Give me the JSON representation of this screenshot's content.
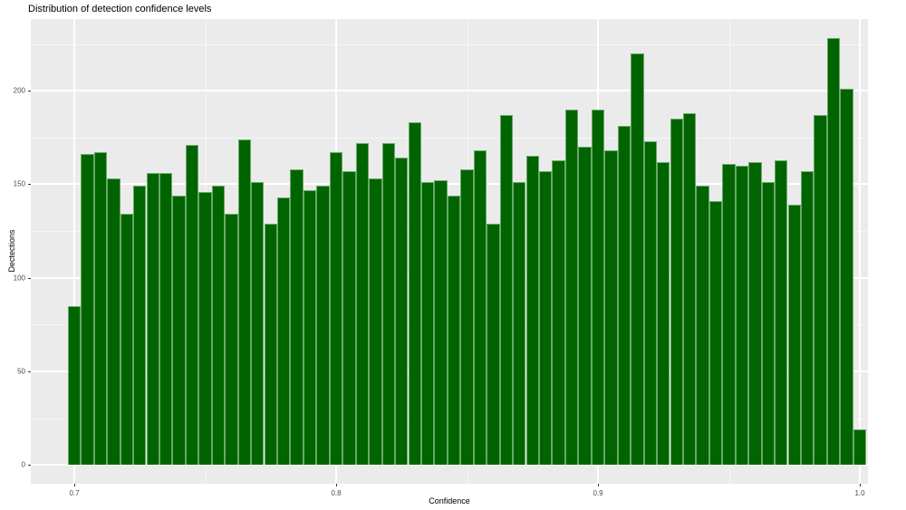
{
  "title": "Distribution of detection confidence levels",
  "chart_data": {
    "type": "bar",
    "subtype": "histogram",
    "title": "Distribution of detection confidence levels",
    "xlabel": "Confidence",
    "ylabel": "Dectections",
    "bin_width": 0.005,
    "x": [
      0.7,
      0.705,
      0.71,
      0.715,
      0.72,
      0.725,
      0.73,
      0.735,
      0.74,
      0.745,
      0.75,
      0.755,
      0.76,
      0.765,
      0.77,
      0.775,
      0.78,
      0.785,
      0.79,
      0.795,
      0.8,
      0.805,
      0.81,
      0.815,
      0.82,
      0.825,
      0.83,
      0.835,
      0.84,
      0.845,
      0.85,
      0.855,
      0.86,
      0.865,
      0.87,
      0.875,
      0.88,
      0.885,
      0.89,
      0.895,
      0.9,
      0.905,
      0.91,
      0.915,
      0.92,
      0.925,
      0.93,
      0.935,
      0.94,
      0.945,
      0.95,
      0.955,
      0.96,
      0.965,
      0.97,
      0.975,
      0.98,
      0.985,
      0.99,
      0.995,
      1.0
    ],
    "counts": [
      85,
      166,
      167,
      153,
      134,
      149,
      156,
      156,
      144,
      171,
      146,
      149,
      134,
      174,
      151,
      129,
      143,
      158,
      147,
      149,
      167,
      157,
      172,
      153,
      172,
      164,
      183,
      151,
      152,
      144,
      158,
      168,
      129,
      187,
      151,
      165,
      157,
      163,
      190,
      170,
      190,
      168,
      181,
      220,
      173,
      162,
      185,
      188,
      149,
      141,
      161,
      160,
      162,
      151,
      163,
      139,
      157,
      187,
      228,
      201,
      19
    ],
    "x_ticks": [
      0.7,
      0.8,
      0.9,
      1.0
    ],
    "x_tick_labels": [
      "0.7",
      "0.8",
      "0.9",
      "1.0"
    ],
    "x_minor_ticks": [
      0.75,
      0.85,
      0.95
    ],
    "y_ticks": [
      0,
      50,
      100,
      150,
      200
    ],
    "y_tick_labels": [
      "0",
      "50",
      "100",
      "150",
      "200"
    ],
    "y_minor_ticks": [
      25,
      75,
      125,
      175,
      225
    ],
    "xlim": [
      0.6835,
      1.0032
    ],
    "ylim": [
      -11.4,
      239.4
    ],
    "grid": "on",
    "legend": "none",
    "colors": {
      "bar_fill": "#006400",
      "bar_edge": "#69a869",
      "panel_background": "#ebebeb",
      "gridline": "#ffffff",
      "tick_label": "#4d4d4d"
    }
  }
}
